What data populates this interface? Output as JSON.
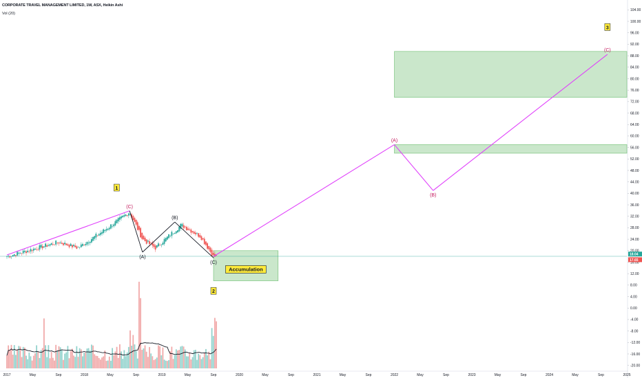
{
  "header": {
    "symbol_line": "CORPORATE TRAVEL MANAGEMENT LIMITED, 1W, ASX, Heikin Ashi",
    "volume_label": "Vol (20)"
  },
  "chart_data": {
    "type": "candlestick",
    "title": "CORPORATE TRAVEL MANAGEMENT LIMITED, 1W, ASX, Heikin Ashi",
    "chart_style": "Heikin Ashi",
    "y_axis": {
      "ticks": [
        "104.00",
        "100.00",
        "96.00",
        "92.00",
        "88.00",
        "84.00",
        "80.00",
        "76.00",
        "72.00",
        "68.00",
        "64.00",
        "60.00",
        "56.00",
        "52.00",
        "48.00",
        "44.00",
        "40.00",
        "36.00",
        "32.00",
        "28.00",
        "24.00",
        "20.00",
        "16.00",
        "12.00",
        "8.00",
        "4.00",
        "0.00",
        "-4.00",
        "-8.00",
        "-12.00",
        "-16.00",
        "-20.00"
      ],
      "range": [
        -22,
        106
      ],
      "position": "right"
    },
    "x_axis": {
      "ticks": [
        "2017",
        "May",
        "Sep",
        "2018",
        "May",
        "Sep",
        "2019",
        "May",
        "Sep",
        "2020",
        "May",
        "Sep",
        "2021",
        "May",
        "Sep",
        "2022",
        "May",
        "Sep",
        "2023",
        "May",
        "Sep",
        "2024",
        "May",
        "Sep",
        "2025"
      ],
      "range": [
        "2017-01",
        "2025-01"
      ]
    },
    "price_labels": [
      {
        "value": 18.04,
        "text": "18.04",
        "color": "#26a69a"
      },
      {
        "value": 17.65,
        "text": "17.65",
        "color": "#ef5350"
      }
    ],
    "current_price": 18.04,
    "price_anchors": [
      {
        "date": "2017-01",
        "price": 18.0
      },
      {
        "date": "2017-09",
        "price": 23.0
      },
      {
        "date": "2017-12",
        "price": 21.0
      },
      {
        "date": "2018-04",
        "price": 27.0
      },
      {
        "date": "2018-08",
        "price": 33.5
      },
      {
        "date": "2018-10",
        "price": 24.0
      },
      {
        "date": "2018-12",
        "price": 21.0
      },
      {
        "date": "2019-04",
        "price": 29.0
      },
      {
        "date": "2019-07",
        "price": 25.0
      },
      {
        "date": "2019-09",
        "price": 18.0
      }
    ],
    "volume": {
      "label": "Vol (20)",
      "max_value": 100,
      "spikes": [
        {
          "date": "2017-06",
          "value": 60,
          "color": "#ef9a9a"
        },
        {
          "date": "2018-09",
          "value": 100,
          "color": "#ef9a9a"
        },
        {
          "date": "2018-08",
          "value": 45,
          "color": "#ef9a9a"
        },
        {
          "date": "2019-09",
          "value": 55,
          "color": "#ef9a9a"
        },
        {
          "date": "2019-08",
          "value": 45,
          "color": "#80cbc4"
        }
      ]
    },
    "elliott_waves": [
      {
        "label": "(C)",
        "date": "2018-08",
        "price": 33.9,
        "color": "#c2185b"
      },
      {
        "label": "(A)",
        "date": "2018-10",
        "price": 19.5,
        "color": "#131722"
      },
      {
        "label": "(B)",
        "date": "2019-03",
        "price": 30.0,
        "color": "#131722"
      },
      {
        "label": "(C)",
        "date": "2019-09",
        "price": 17.5,
        "color": "#131722"
      },
      {
        "label": "(A)",
        "date": "2022-01",
        "price": 57.0,
        "color": "#c2185b"
      },
      {
        "label": "(B)",
        "date": "2022-07",
        "price": 41.0,
        "color": "#c2185b"
      },
      {
        "label": "(C)",
        "date": "2024-10",
        "price": 88.5,
        "color": "#c2185b"
      }
    ],
    "wave_markers": [
      {
        "label": "1",
        "date": "2018-06",
        "price": 42.0
      },
      {
        "label": "2",
        "date": "2019-09",
        "price": 6.0
      },
      {
        "label": "3",
        "date": "2024-10",
        "price": 98.0
      }
    ],
    "zones": [
      {
        "date_start": "2019-09",
        "date_end": "2020-07",
        "price_low": 9.5,
        "price_high": 20.0,
        "label": "Accumulation"
      },
      {
        "date_start": "2022-01",
        "date_end": "2025-01",
        "price_low": 54.0,
        "price_high": 57.0,
        "label": ""
      },
      {
        "date_start": "2022-01",
        "date_end": "2025-01",
        "price_low": 73.5,
        "price_high": 89.5,
        "label": ""
      }
    ],
    "trendlines": [
      {
        "from": {
          "date": "2017-01",
          "price": 18.5
        },
        "to": {
          "date": "2018-08",
          "price": 33.9
        },
        "color": "#e040fb"
      },
      {
        "from": {
          "date": "2019-09",
          "price": 18.0
        },
        "to": {
          "date": "2022-01",
          "price": 57.0
        },
        "color": "#e040fb"
      },
      {
        "from": {
          "date": "2022-01",
          "price": 57.0
        },
        "to": {
          "date": "2022-07",
          "price": 41.0
        },
        "color": "#e040fb"
      },
      {
        "from": {
          "date": "2022-07",
          "price": 41.0
        },
        "to": {
          "date": "2024-10",
          "price": 88.5
        },
        "color": "#e040fb"
      },
      {
        "from": {
          "date": "2018-08",
          "price": 33.9
        },
        "to": {
          "date": "2018-10",
          "price": 19.5
        },
        "color": "#131722"
      },
      {
        "from": {
          "date": "2018-10",
          "price": 19.5
        },
        "to": {
          "date": "2019-03",
          "price": 30.0
        },
        "color": "#131722"
      },
      {
        "from": {
          "date": "2019-03",
          "price": 30.0
        },
        "to": {
          "date": "2019-09",
          "price": 17.5
        },
        "color": "#131722"
      }
    ],
    "colors": {
      "up": "#26a69a",
      "down": "#ef5350",
      "zone_fill": "#c8e6c9",
      "zone_border": "#66bb6a",
      "wave_magenta": "#e040fb",
      "marker_bg": "#ffeb3b"
    },
    "grid": false
  }
}
